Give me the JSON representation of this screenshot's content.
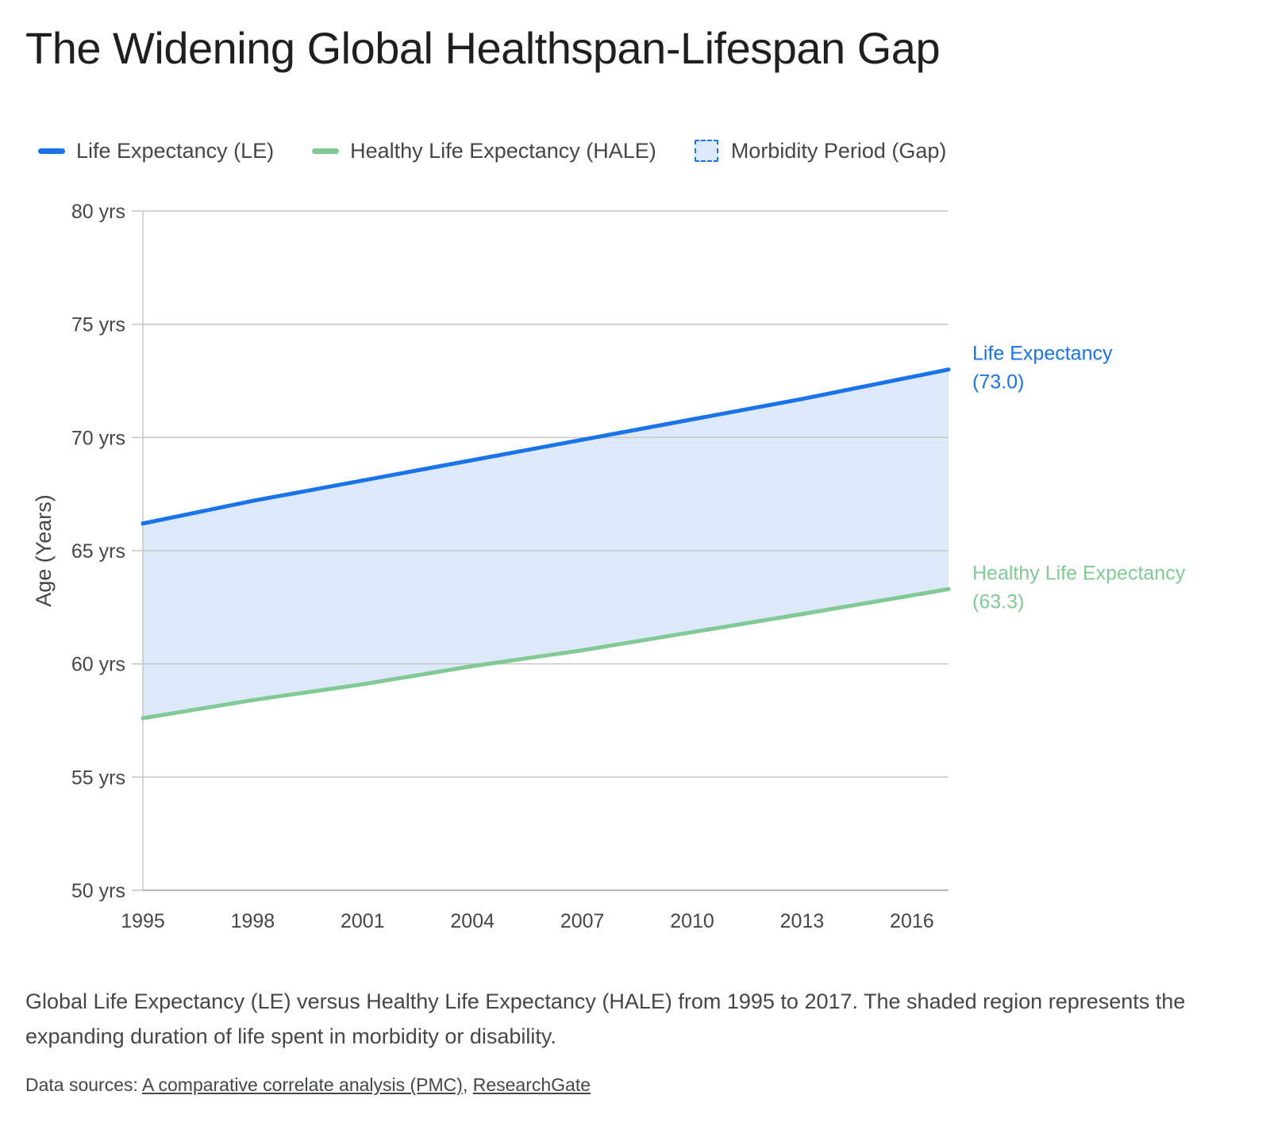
{
  "title": "The Widening Global Healthspan-Lifespan Gap",
  "legend": [
    {
      "label": "Life Expectancy (LE)",
      "color": "#1a73e8",
      "kind": "line"
    },
    {
      "label": "Healthy Life Expectancy (HALE)",
      "color": "#81c995",
      "kind": "line"
    },
    {
      "label": "Morbidity Period (Gap)",
      "color": "#dde8f9",
      "kind": "area"
    }
  ],
  "chart_data": {
    "type": "line",
    "x": [
      1995,
      1998,
      2001,
      2004,
      2007,
      2010,
      2013,
      2017
    ],
    "series": [
      {
        "name": "Life Expectancy (LE)",
        "color": "#1a73e8",
        "values": [
          66.2,
          67.2,
          68.1,
          69.0,
          69.9,
          70.8,
          71.7,
          73.0
        ]
      },
      {
        "name": "Healthy Life Expectancy (HALE)",
        "color": "#81c995",
        "values": [
          57.6,
          58.4,
          59.1,
          59.9,
          60.6,
          61.4,
          62.2,
          63.3
        ]
      }
    ],
    "shaded_region": {
      "name": "Morbidity Period (Gap)",
      "between": [
        "Life Expectancy (LE)",
        "Healthy Life Expectancy (HALE)"
      ],
      "color": "#dde8f9"
    },
    "xticks": [
      1995,
      1998,
      2001,
      2004,
      2007,
      2010,
      2013,
      2016
    ],
    "xlim": [
      1995,
      2017
    ],
    "yticks": [
      50,
      55,
      60,
      65,
      70,
      75,
      80
    ],
    "ytick_labels": [
      "50 yrs",
      "55 yrs",
      "60 yrs",
      "65 yrs",
      "70 yrs",
      "75 yrs",
      "80 yrs"
    ],
    "ylim": [
      50,
      80
    ],
    "ylabel": "Age (Years)",
    "xlabel": "",
    "grid": "horizontal",
    "end_labels": [
      {
        "series": "Life Expectancy (LE)",
        "line1": "Life Expectancy",
        "line2": "(73.0)"
      },
      {
        "series": "Healthy Life Expectancy (HALE)",
        "line1": "Healthy Life Expectancy",
        "line2": "(63.3)"
      }
    ]
  },
  "caption": "Global Life Expectancy (LE) versus Healthy Life Expectancy (HALE) from 1995 to 2017. The shaded region represents the expanding duration of life spent in morbidity or disability.",
  "sources": {
    "prefix": "Data sources: ",
    "links": [
      "A comparative correlate analysis (PMC)",
      "ResearchGate"
    ],
    "separator": ", "
  }
}
